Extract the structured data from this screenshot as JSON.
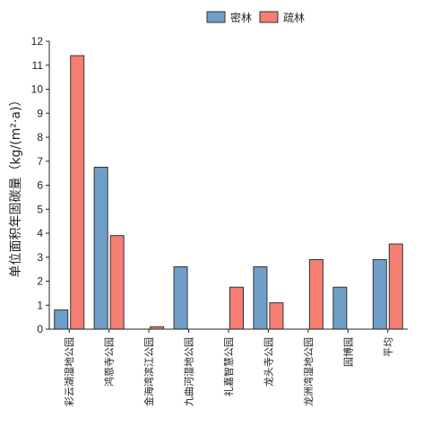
{
  "chart_data": {
    "type": "bar",
    "ylabel": "单位面积年固碳量（kg/(m²·a)）",
    "ylim": [
      0,
      12
    ],
    "yticks": [
      0,
      1,
      2,
      3,
      4,
      5,
      6,
      7,
      8,
      9,
      10,
      11,
      12
    ],
    "grid": false,
    "legend_position": "top-right",
    "categories": [
      "彩云湖湿地公园",
      "鸿恩寺公园",
      "金海湾滨江公园",
      "九曲河湿地公园",
      "礼嘉智慧公园",
      "龙头寺公园",
      "龙洲湾湿地公园",
      "园博园",
      "平均"
    ],
    "series": [
      {
        "name": "密林",
        "color": "#6f9fc8",
        "values": [
          0.8,
          6.75,
          0,
          2.6,
          0,
          2.6,
          0,
          1.75,
          2.9
        ]
      },
      {
        "name": "疏林",
        "color": "#f47f72",
        "values": [
          11.4,
          3.9,
          0.1,
          0,
          1.75,
          1.1,
          2.9,
          0,
          3.55
        ]
      }
    ]
  }
}
